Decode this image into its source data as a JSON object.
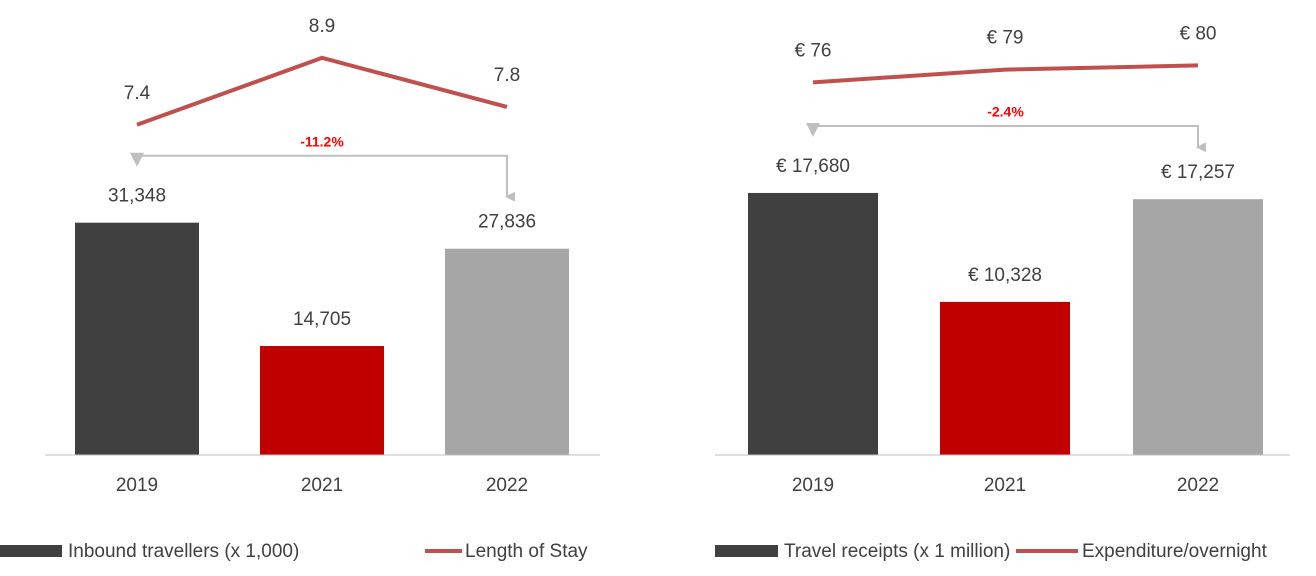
{
  "chart_data": [
    {
      "type": "bar",
      "categories": [
        "2019",
        "2021",
        "2022"
      ],
      "series": [
        {
          "name": "Inbound travellers (x 1,000)",
          "colors": [
            "#404040",
            "#c00000",
            "#a6a6a6"
          ],
          "legend_color": "#404040",
          "values": [
            31348,
            14705,
            27836
          ],
          "value_labels": [
            "31,348",
            "14,705",
            "27,836"
          ]
        },
        {
          "name": "Length of Stay",
          "type": "line",
          "axis": "y2",
          "color": "#c0504d",
          "values": [
            7.4,
            8.9,
            7.8
          ]
        }
      ],
      "ylim": [
        0,
        56000
      ],
      "y2lim": [
        0,
        9.3
      ],
      "annotation": "-11.2%"
    },
    {
      "type": "bar",
      "categories": [
        "2019",
        "2021",
        "2022"
      ],
      "series": [
        {
          "name": "Travel receipts (x 1 million)",
          "colors": [
            "#404040",
            "#c00000",
            "#a6a6a6"
          ],
          "legend_color": "#404040",
          "values": [
            17680,
            10328,
            17257
          ],
          "value_labels": [
            "€ 17,680",
            "€ 10,328",
            "€ 17,257"
          ]
        },
        {
          "name": "Expenditure/overnight",
          "type": "line",
          "axis": "y2",
          "color": "#c0504d",
          "values": [
            76,
            79,
            80
          ],
          "value_labels": [
            "€ 76",
            "€ 79",
            "€ 80"
          ]
        }
      ],
      "ylim": [
        0,
        28000
      ],
      "y2lim": [
        -12,
        86
      ],
      "annotation": "-2.4%"
    }
  ]
}
